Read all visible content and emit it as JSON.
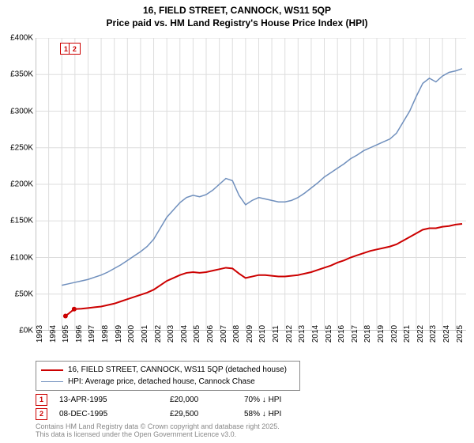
{
  "title_line1": "16, FIELD STREET, CANNOCK, WS11 5QP",
  "title_line2": "Price paid vs. HM Land Registry's House Price Index (HPI)",
  "chart": {
    "type": "line",
    "background_color": "#ffffff",
    "grid_color": "#dddddd",
    "axis_color": "#000000",
    "xlim": [
      1993,
      2025.8
    ],
    "ylim": [
      0,
      400
    ],
    "y_ticks": [
      0,
      50,
      100,
      150,
      200,
      250,
      300,
      350,
      400
    ],
    "y_tick_labels": [
      "£0K",
      "£50K",
      "£100K",
      "£150K",
      "£200K",
      "£250K",
      "£300K",
      "£350K",
      "£400K"
    ],
    "x_ticks": [
      1993,
      1994,
      1995,
      1996,
      1997,
      1998,
      1999,
      2000,
      2001,
      2002,
      2003,
      2004,
      2005,
      2006,
      2007,
      2008,
      2009,
      2010,
      2011,
      2012,
      2013,
      2014,
      2015,
      2016,
      2017,
      2018,
      2019,
      2020,
      2021,
      2022,
      2023,
      2024,
      2025
    ],
    "series": [
      {
        "name": "property",
        "label": "16, FIELD STREET, CANNOCK, WS11 5QP (detached house)",
        "color": "#cc0000",
        "line_width": 2,
        "data": [
          [
            1995.28,
            20
          ],
          [
            1995.5,
            23
          ],
          [
            1995.94,
            29.5
          ],
          [
            1996.5,
            30
          ],
          [
            1997,
            31
          ],
          [
            1997.5,
            32
          ],
          [
            1998,
            33
          ],
          [
            1998.5,
            35
          ],
          [
            1999,
            37
          ],
          [
            1999.5,
            40
          ],
          [
            2000,
            43
          ],
          [
            2000.5,
            46
          ],
          [
            2001,
            49
          ],
          [
            2001.5,
            52
          ],
          [
            2002,
            56
          ],
          [
            2002.5,
            62
          ],
          [
            2003,
            68
          ],
          [
            2003.5,
            72
          ],
          [
            2004,
            76
          ],
          [
            2004.5,
            79
          ],
          [
            2005,
            80
          ],
          [
            2005.5,
            79
          ],
          [
            2006,
            80
          ],
          [
            2006.5,
            82
          ],
          [
            2007,
            84
          ],
          [
            2007.5,
            86
          ],
          [
            2008,
            85
          ],
          [
            2008.5,
            78
          ],
          [
            2009,
            72
          ],
          [
            2009.5,
            74
          ],
          [
            2010,
            76
          ],
          [
            2010.5,
            76
          ],
          [
            2011,
            75
          ],
          [
            2011.5,
            74
          ],
          [
            2012,
            74
          ],
          [
            2012.5,
            75
          ],
          [
            2013,
            76
          ],
          [
            2013.5,
            78
          ],
          [
            2014,
            80
          ],
          [
            2014.5,
            83
          ],
          [
            2015,
            86
          ],
          [
            2015.5,
            89
          ],
          [
            2016,
            93
          ],
          [
            2016.5,
            96
          ],
          [
            2017,
            100
          ],
          [
            2017.5,
            103
          ],
          [
            2018,
            106
          ],
          [
            2018.5,
            109
          ],
          [
            2019,
            111
          ],
          [
            2019.5,
            113
          ],
          [
            2020,
            115
          ],
          [
            2020.5,
            118
          ],
          [
            2021,
            123
          ],
          [
            2021.5,
            128
          ],
          [
            2022,
            133
          ],
          [
            2022.5,
            138
          ],
          [
            2023,
            140
          ],
          [
            2023.5,
            140
          ],
          [
            2024,
            142
          ],
          [
            2024.5,
            143
          ],
          [
            2025,
            145
          ],
          [
            2025.5,
            146
          ]
        ]
      },
      {
        "name": "hpi",
        "label": "HPI: Average price, detached house, Cannock Chase",
        "color": "#6f8fbd",
        "line_width": 1.5,
        "data": [
          [
            1995,
            62
          ],
          [
            1995.5,
            64
          ],
          [
            1996,
            66
          ],
          [
            1996.5,
            68
          ],
          [
            1997,
            70
          ],
          [
            1997.5,
            73
          ],
          [
            1998,
            76
          ],
          [
            1998.5,
            80
          ],
          [
            1999,
            85
          ],
          [
            1999.5,
            90
          ],
          [
            2000,
            96
          ],
          [
            2000.5,
            102
          ],
          [
            2001,
            108
          ],
          [
            2001.5,
            115
          ],
          [
            2002,
            125
          ],
          [
            2002.5,
            140
          ],
          [
            2003,
            155
          ],
          [
            2003.5,
            165
          ],
          [
            2004,
            175
          ],
          [
            2004.5,
            182
          ],
          [
            2005,
            185
          ],
          [
            2005.5,
            183
          ],
          [
            2006,
            186
          ],
          [
            2006.5,
            192
          ],
          [
            2007,
            200
          ],
          [
            2007.5,
            208
          ],
          [
            2008,
            205
          ],
          [
            2008.5,
            185
          ],
          [
            2009,
            172
          ],
          [
            2009.5,
            178
          ],
          [
            2010,
            182
          ],
          [
            2010.5,
            180
          ],
          [
            2011,
            178
          ],
          [
            2011.5,
            176
          ],
          [
            2012,
            176
          ],
          [
            2012.5,
            178
          ],
          [
            2013,
            182
          ],
          [
            2013.5,
            188
          ],
          [
            2014,
            195
          ],
          [
            2014.5,
            202
          ],
          [
            2015,
            210
          ],
          [
            2015.5,
            216
          ],
          [
            2016,
            222
          ],
          [
            2016.5,
            228
          ],
          [
            2017,
            235
          ],
          [
            2017.5,
            240
          ],
          [
            2018,
            246
          ],
          [
            2018.5,
            250
          ],
          [
            2019,
            254
          ],
          [
            2019.5,
            258
          ],
          [
            2020,
            262
          ],
          [
            2020.5,
            270
          ],
          [
            2021,
            285
          ],
          [
            2021.5,
            300
          ],
          [
            2022,
            320
          ],
          [
            2022.5,
            338
          ],
          [
            2023,
            345
          ],
          [
            2023.5,
            340
          ],
          [
            2024,
            348
          ],
          [
            2024.5,
            353
          ],
          [
            2025,
            355
          ],
          [
            2025.5,
            358
          ]
        ]
      }
    ],
    "event_markers": [
      {
        "num": "1",
        "x": 1995.28,
        "y": 20
      },
      {
        "num": "2",
        "x": 1995.94,
        "y": 29.5
      }
    ],
    "label_fontsize": 10,
    "title_fontsize": 12
  },
  "legend": {
    "items": [
      {
        "color": "#cc0000",
        "width": 2,
        "label": "16, FIELD STREET, CANNOCK, WS11 5QP (detached house)"
      },
      {
        "color": "#6f8fbd",
        "width": 1.5,
        "label": "HPI: Average price, detached house, Cannock Chase"
      }
    ]
  },
  "events": [
    {
      "num": "1",
      "date": "13-APR-1995",
      "price": "£20,000",
      "delta": "70% ↓ HPI"
    },
    {
      "num": "2",
      "date": "08-DEC-1995",
      "price": "£29,500",
      "delta": "58% ↓ HPI"
    }
  ],
  "attribution_line1": "Contains HM Land Registry data © Crown copyright and database right 2025.",
  "attribution_line2": "This data is licensed under the Open Government Licence v3.0."
}
